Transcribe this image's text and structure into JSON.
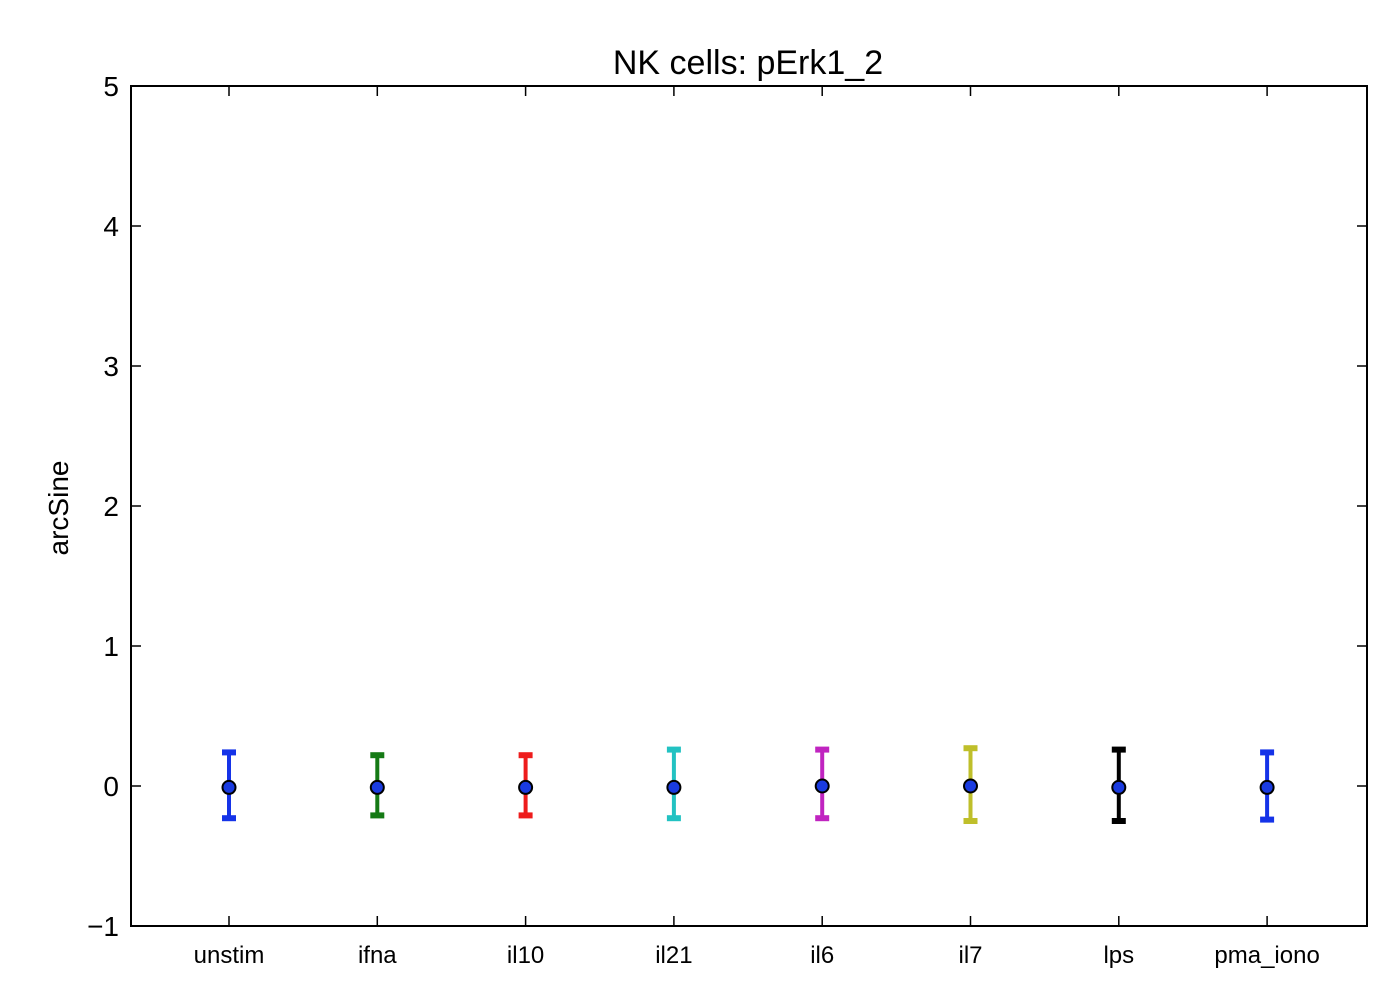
{
  "chart_data": {
    "type": "errorbar",
    "title": "NK cells: pErk1_2",
    "xlabel": "",
    "ylabel": "arcSine",
    "ylim": [
      -1,
      5
    ],
    "yticks": [
      "−1",
      "0",
      "1",
      "2",
      "3",
      "4",
      "5"
    ],
    "grid": false,
    "categories": [
      "unstim",
      "ifna",
      "il10",
      "il21",
      "il6",
      "il7",
      "lps",
      "pma_iono"
    ],
    "values": [
      -0.01,
      -0.01,
      -0.01,
      -0.01,
      0.0,
      0.0,
      -0.01,
      -0.01
    ],
    "upper": [
      0.24,
      0.22,
      0.22,
      0.26,
      0.26,
      0.27,
      0.26,
      0.24
    ],
    "lower": [
      -0.23,
      -0.21,
      -0.21,
      -0.23,
      -0.23,
      -0.25,
      -0.25,
      -0.24
    ],
    "bar_colors": [
      "#1533e8",
      "#157a15",
      "#ee1c1c",
      "#22c2c2",
      "#c024c0",
      "#bfbf2a",
      "#000000",
      "#1533e8"
    ],
    "marker_color": "#1a3be0"
  }
}
